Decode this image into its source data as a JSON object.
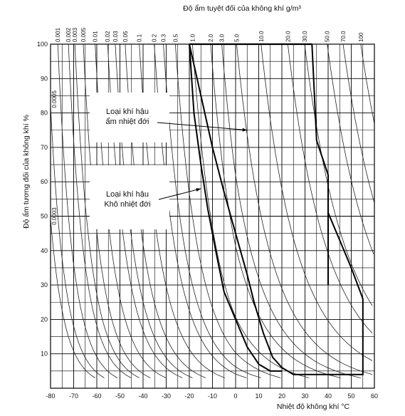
{
  "chart_data": {
    "type": "line",
    "title": "Độ ẩm tuyệt đối của không khí g/m³",
    "xlabel": "Nhiệt độ không khí °C",
    "ylabel": "Độ ẩm tương đối của không khí %",
    "xlim": [
      -80,
      60
    ],
    "ylim": [
      0,
      100
    ],
    "x_ticks": [
      -80,
      -70,
      -60,
      -50,
      -40,
      -30,
      -20,
      -10,
      0,
      10,
      20,
      30,
      40,
      50,
      60
    ],
    "y_ticks": [
      10,
      20,
      30,
      40,
      50,
      60,
      70,
      80,
      90,
      100
    ],
    "grid": true,
    "absolute_humidity_labels": [
      "0.001",
      "0.002",
      "0.003",
      "0.005",
      "0.01",
      "0.02",
      "0.03",
      "0.05",
      "0.1",
      "0.2",
      "0.3",
      "0.5",
      "1.0",
      "2.0",
      "3.0",
      "5.0",
      "10.0",
      "20.0",
      "30.0",
      "50.0",
      "70.0",
      "100"
    ],
    "left_side_labels": [
      "0.0005",
      "0.0003"
    ],
    "absolute_humidity_values": [
      0.0003,
      0.0005,
      0.001,
      0.002,
      0.003,
      0.005,
      0.01,
      0.02,
      0.03,
      0.05,
      0.1,
      0.2,
      0.3,
      0.5,
      1.0,
      2.0,
      3.0,
      5.0,
      10.0,
      20.0,
      30.0,
      50.0,
      70.0,
      100.0
    ],
    "annotations": [
      {
        "lines": [
          "Loại khí hậu",
          "ẩm nhiệt đới"
        ],
        "x": 5,
        "y": 75
      },
      {
        "lines": [
          "Loại khí hậu",
          "Khô nhiệt đới"
        ],
        "x": -15,
        "y": 58
      }
    ],
    "climate_regions": [
      {
        "name": "Loại khí hậu ẩm nhiệt đới",
        "points": [
          [
            -20,
            100
          ],
          [
            -15,
            85
          ],
          [
            -10,
            70
          ],
          [
            -5,
            57
          ],
          [
            0,
            45
          ],
          [
            5,
            33
          ],
          [
            8,
            25
          ],
          [
            12,
            16
          ],
          [
            16,
            9
          ],
          [
            20,
            6
          ],
          [
            25,
            4
          ],
          [
            30,
            4
          ],
          [
            40,
            4
          ],
          [
            55,
            4
          ],
          [
            55,
            26
          ],
          [
            50,
            35
          ],
          [
            45,
            43
          ],
          [
            40,
            51
          ],
          [
            40,
            30
          ],
          [
            40,
            62
          ],
          [
            35,
            72
          ],
          [
            33,
            100
          ]
        ]
      },
      {
        "name": "Loại khí hậu Khô nhiệt đới",
        "points": [
          [
            -20,
            100
          ],
          [
            -18,
            80
          ],
          [
            -15,
            65
          ],
          [
            -12,
            52
          ],
          [
            -8,
            38
          ],
          [
            -5,
            28
          ],
          [
            0,
            20
          ],
          [
            5,
            12
          ],
          [
            10,
            7
          ],
          [
            15,
            5
          ],
          [
            20,
            5
          ]
        ]
      }
    ]
  }
}
